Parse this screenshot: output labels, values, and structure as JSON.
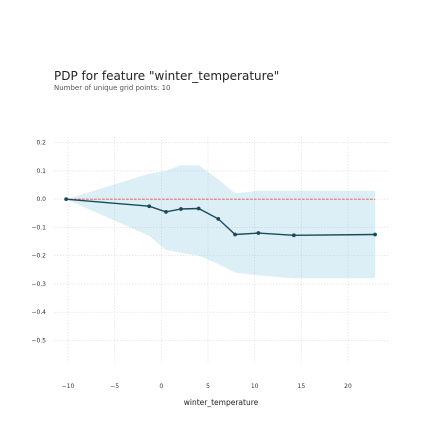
{
  "chart_data": {
    "type": "line",
    "title": "PDP for feature \"winter_temperature\"",
    "subtitle": "Number of unique grid points: 10",
    "xlabel": "winter_temperature",
    "ylabel": "",
    "xlim": [
      -11.5,
      24.5
    ],
    "ylim": [
      -0.58,
      0.22
    ],
    "x_ticks": [
      -10,
      -5,
      0,
      5,
      10,
      15,
      20
    ],
    "x_tick_labels": [
      "−10",
      "−5",
      "0",
      "5",
      "10",
      "15",
      "20"
    ],
    "y_ticks": [
      0.2,
      0.1,
      0.0,
      -0.1,
      -0.2,
      -0.3,
      -0.4,
      -0.5
    ],
    "y_tick_labels": [
      "0.2",
      "0.1",
      "0.0",
      "−0.1",
      "−0.2",
      "−0.3",
      "−0.4",
      "−0.5"
    ],
    "grid": true,
    "series": [
      {
        "x": [
          -10.2,
          -1.3,
          0.5,
          2.1,
          4.0,
          6.1,
          7.9,
          10.4,
          14.2,
          22.9
        ],
        "y": [
          0.0,
          -0.025,
          -0.045,
          -0.035,
          -0.033,
          -0.07,
          -0.125,
          -0.12,
          -0.128,
          -0.125
        ]
      }
    ],
    "band": {
      "x": [
        -10.2,
        -1.3,
        0.5,
        2.1,
        4.0,
        6.1,
        7.9,
        10.4,
        14.2,
        22.9
      ],
      "upper": [
        0.0,
        0.09,
        0.1,
        0.12,
        0.12,
        0.07,
        0.02,
        0.03,
        0.03,
        0.03
      ],
      "lower": [
        0.0,
        -0.13,
        -0.18,
        -0.19,
        -0.2,
        -0.23,
        -0.26,
        -0.27,
        -0.28,
        -0.28
      ]
    },
    "baseline": 0.0,
    "colors": {
      "line": "#1a4a5a",
      "band": "#66b8d8",
      "baseline": "#e8483c",
      "grid": "#dddddd"
    }
  }
}
